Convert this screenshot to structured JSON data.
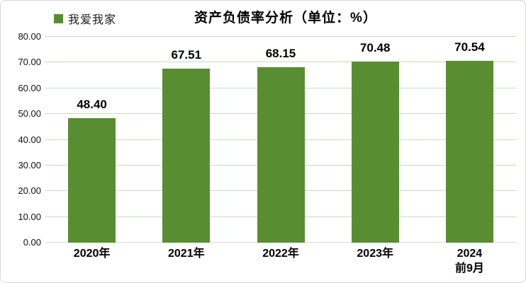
{
  "title": {
    "text": "资产负债率分析",
    "unit": "（单位：%）"
  },
  "legend": {
    "label": "我爱我家",
    "swatch_icon": "legend-square-swatch",
    "swatch_color": "#588d31"
  },
  "colors": {
    "bar": "#588d31",
    "gridline": "#c6dfb8",
    "axis_line": "#d9d9d9",
    "frame_border": "#d7d7d7",
    "text": "#000000"
  },
  "chart_data": {
    "type": "bar",
    "title": "资产负债率分析（单位：%）",
    "series_name": "我爱我家",
    "categories": [
      "2020年",
      "2021年",
      "2022年",
      "2023年",
      "2024\n前9月"
    ],
    "values": [
      48.4,
      67.51,
      68.15,
      70.48,
      70.54
    ],
    "value_labels": [
      "48.40",
      "67.51",
      "68.15",
      "70.48",
      "70.54"
    ],
    "xlabel": "",
    "ylabel": "",
    "ylim": [
      0,
      80
    ],
    "ytick_step": 10,
    "ytick_labels": [
      "0.00",
      "10.00",
      "20.00",
      "30.00",
      "40.00",
      "50.00",
      "60.00",
      "70.00",
      "80.00"
    ],
    "grid": true,
    "legend_position": "top-left",
    "bar_color": "#588d31"
  }
}
